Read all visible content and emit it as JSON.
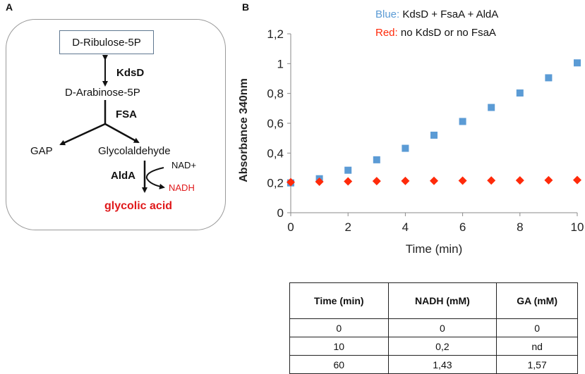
{
  "panel_a": {
    "label": "A",
    "nodes": {
      "ribulose": "D-Ribulose-5P",
      "kdsd": "KdsD",
      "arabinose": "D-Arabinose-5P",
      "fsa": "FSA",
      "gap": "GAP",
      "glycolaldehyde": "Glycolaldehyde",
      "alda": "AldA",
      "nad": "NAD+",
      "nadh": "NADH",
      "glycolic": "glycolic acid"
    },
    "colors": {
      "red": "#e0191b",
      "box_border": "#5f7890"
    }
  },
  "panel_b": {
    "label": "B",
    "legend": {
      "blue_key": "Blue:",
      "blue_text": "KdsD + FsaA + AldA",
      "red_key": "Red:",
      "red_text": "no KdsD or no FsaA"
    }
  },
  "chart_data": {
    "type": "scatter",
    "title": "",
    "xlabel": "Time (min)",
    "ylabel": "Absorbance 340nm",
    "xlim": [
      0,
      10
    ],
    "ylim": [
      0,
      1.2
    ],
    "xticks": [
      0,
      2,
      4,
      6,
      8,
      10
    ],
    "xtick_labels": [
      "0",
      "2",
      "4",
      "6",
      "8",
      "10"
    ],
    "yticks": [
      0,
      0.2,
      0.4,
      0.6,
      0.8,
      1,
      1.2
    ],
    "ytick_labels": [
      "0",
      "0,2",
      "0,4",
      "0,6",
      "0,8",
      "1",
      "1,2"
    ],
    "series": [
      {
        "name": "KdsD + FsaA + AldA",
        "color": "#5b9bd5",
        "marker": "square",
        "x": [
          0,
          1,
          2,
          3,
          4,
          5,
          6,
          7,
          8,
          9,
          10
        ],
        "y": [
          0.2,
          0.228,
          0.285,
          0.355,
          0.432,
          0.52,
          0.612,
          0.706,
          0.803,
          0.905,
          1.005
        ]
      },
      {
        "name": "no KdsD or no FsaA",
        "color": "#ff2a0a",
        "marker": "diamond",
        "x": [
          0,
          1,
          2,
          3,
          4,
          5,
          6,
          7,
          8,
          9,
          10
        ],
        "y": [
          0.205,
          0.208,
          0.21,
          0.212,
          0.213,
          0.214,
          0.215,
          0.216,
          0.217,
          0.218,
          0.219
        ]
      }
    ]
  },
  "table": {
    "headers": [
      "Time (min)",
      "NADH (mM)",
      "GA (mM)"
    ],
    "rows": [
      [
        "0",
        "0",
        "0"
      ],
      [
        "10",
        "0,2",
        "nd"
      ],
      [
        "60",
        "1,43",
        "1,57"
      ]
    ]
  }
}
